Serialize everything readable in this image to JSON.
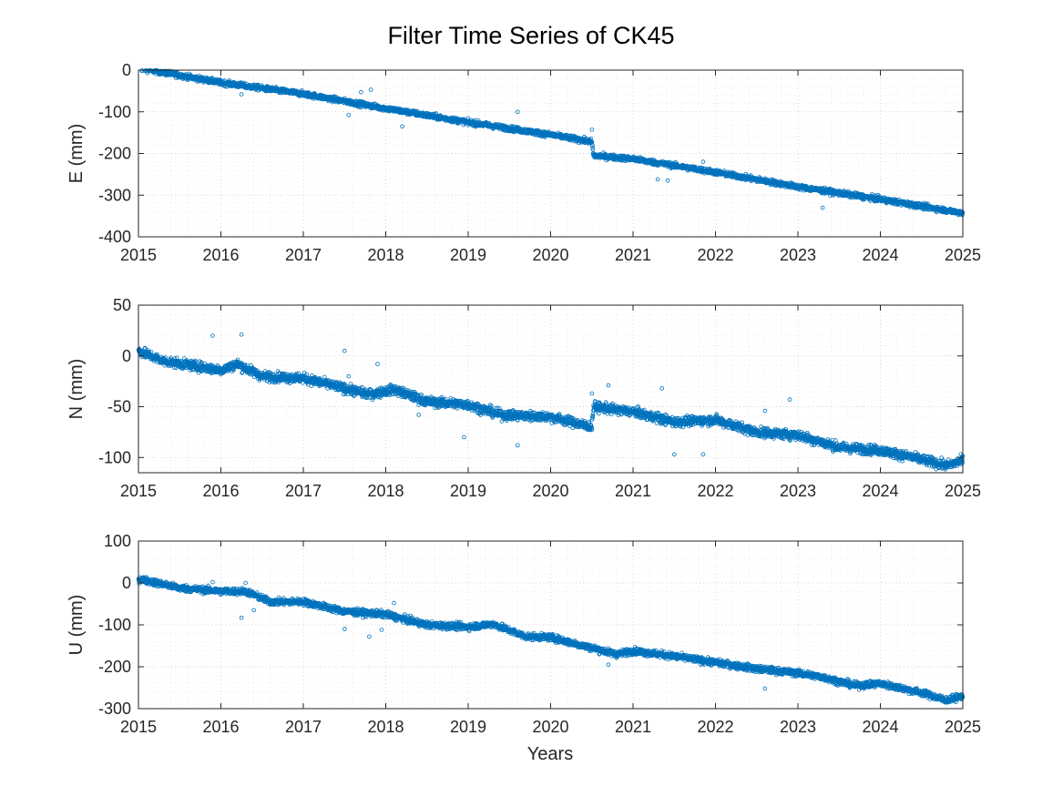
{
  "title": "Filter Time Series of CK45",
  "xlabel": "Years",
  "colors": {
    "marker": "#0072bd",
    "axes": "#262626",
    "grid": "#cfcfcf"
  },
  "chart_data": [
    {
      "type": "scatter",
      "name": "E",
      "ylabel": "E (mm)",
      "xlim": [
        2015,
        2025
      ],
      "ylim": [
        -400,
        0
      ],
      "xticks": [
        2015,
        2016,
        2017,
        2018,
        2019,
        2020,
        2021,
        2022,
        2023,
        2024,
        2025
      ],
      "yticks": [
        0,
        -100,
        -200,
        -300,
        -400
      ],
      "grid": "on (major and minor)",
      "marker": "open circle",
      "trend": [
        [
          2015.0,
          5
        ],
        [
          2016.0,
          -30
        ],
        [
          2017.0,
          -57
        ],
        [
          2018.0,
          -92
        ],
        [
          2019.0,
          -125
        ],
        [
          2020.0,
          -155
        ],
        [
          2020.5,
          -172
        ],
        [
          2020.52,
          -205
        ],
        [
          2021.0,
          -213
        ],
        [
          2022.0,
          -245
        ],
        [
          2023.0,
          -280
        ],
        [
          2024.0,
          -310
        ],
        [
          2025.0,
          -343
        ]
      ],
      "offsets": [
        {
          "x": 2020.51,
          "from": -172,
          "to": -205
        }
      ],
      "outliers": [
        [
          2016.25,
          -58
        ],
        [
          2017.55,
          -108
        ],
        [
          2017.7,
          -53
        ],
        [
          2017.82,
          -47
        ],
        [
          2018.2,
          -135
        ],
        [
          2019.0,
          -132
        ],
        [
          2019.6,
          -100
        ],
        [
          2020.5,
          -143
        ],
        [
          2021.3,
          -262
        ],
        [
          2021.42,
          -265
        ],
        [
          2021.85,
          -220
        ],
        [
          2023.3,
          -330
        ]
      ]
    },
    {
      "type": "scatter",
      "name": "N",
      "ylabel": "N (mm)",
      "xlim": [
        2015,
        2025
      ],
      "ylim": [
        -115,
        50
      ],
      "xticks": [
        2015,
        2016,
        2017,
        2018,
        2019,
        2020,
        2021,
        2022,
        2023,
        2024,
        2025
      ],
      "yticks": [
        50,
        0,
        -50,
        -100
      ],
      "grid": "on (major and minor)",
      "marker": "open circle",
      "trend": [
        [
          2015.0,
          5
        ],
        [
          2015.3,
          -5
        ],
        [
          2016.0,
          -14
        ],
        [
          2016.2,
          -8
        ],
        [
          2016.5,
          -20
        ],
        [
          2017.0,
          -22
        ],
        [
          2017.3,
          -28
        ],
        [
          2017.8,
          -38
        ],
        [
          2018.1,
          -33
        ],
        [
          2018.5,
          -45
        ],
        [
          2019.0,
          -48
        ],
        [
          2019.4,
          -58
        ],
        [
          2020.0,
          -60
        ],
        [
          2020.5,
          -70
        ],
        [
          2020.52,
          -50
        ],
        [
          2021.0,
          -55
        ],
        [
          2021.5,
          -65
        ],
        [
          2022.0,
          -63
        ],
        [
          2022.5,
          -75
        ],
        [
          2023.0,
          -78
        ],
        [
          2023.5,
          -90
        ],
        [
          2024.0,
          -93
        ],
        [
          2024.4,
          -100
        ],
        [
          2024.8,
          -108
        ],
        [
          2025.0,
          -103
        ]
      ],
      "offsets": [
        {
          "x": 2020.51,
          "from": -70,
          "to": -50
        }
      ],
      "outliers": [
        [
          2015.9,
          20
        ],
        [
          2016.25,
          21
        ],
        [
          2017.5,
          5
        ],
        [
          2017.55,
          -20
        ],
        [
          2017.9,
          -8
        ],
        [
          2018.4,
          -58
        ],
        [
          2018.95,
          -80
        ],
        [
          2019.6,
          -88
        ],
        [
          2020.5,
          -37
        ],
        [
          2020.7,
          -29
        ],
        [
          2021.35,
          -32
        ],
        [
          2021.5,
          -97
        ],
        [
          2021.85,
          -97
        ],
        [
          2022.6,
          -54
        ],
        [
          2022.9,
          -43
        ]
      ]
    },
    {
      "type": "scatter",
      "name": "U",
      "ylabel": "U (mm)",
      "xlim": [
        2015,
        2025
      ],
      "ylim": [
        -300,
        100
      ],
      "xticks": [
        2015,
        2016,
        2017,
        2018,
        2019,
        2020,
        2021,
        2022,
        2023,
        2024,
        2025
      ],
      "yticks": [
        100,
        0,
        -100,
        -200,
        -300
      ],
      "grid": "on (major and minor)",
      "marker": "open circle",
      "trend": [
        [
          2015.0,
          10
        ],
        [
          2015.5,
          -12
        ],
        [
          2016.0,
          -20
        ],
        [
          2016.3,
          -20
        ],
        [
          2016.6,
          -45
        ],
        [
          2017.0,
          -45
        ],
        [
          2017.5,
          -68
        ],
        [
          2018.0,
          -75
        ],
        [
          2018.5,
          -100
        ],
        [
          2019.0,
          -105
        ],
        [
          2019.3,
          -98
        ],
        [
          2019.7,
          -128
        ],
        [
          2020.0,
          -130
        ],
        [
          2020.5,
          -155
        ],
        [
          2020.8,
          -170
        ],
        [
          2021.0,
          -162
        ],
        [
          2021.5,
          -175
        ],
        [
          2022.0,
          -190
        ],
        [
          2022.5,
          -205
        ],
        [
          2023.0,
          -215
        ],
        [
          2023.3,
          -225
        ],
        [
          2023.7,
          -245
        ],
        [
          2024.0,
          -240
        ],
        [
          2024.5,
          -262
        ],
        [
          2024.8,
          -280
        ],
        [
          2025.0,
          -270
        ]
      ],
      "offsets": [],
      "outliers": [
        [
          2015.9,
          2
        ],
        [
          2016.25,
          -83
        ],
        [
          2016.3,
          0
        ],
        [
          2016.4,
          -65
        ],
        [
          2017.5,
          -110
        ],
        [
          2017.8,
          -128
        ],
        [
          2017.95,
          -112
        ],
        [
          2018.1,
          -48
        ],
        [
          2020.7,
          -195
        ],
        [
          2022.6,
          -252
        ],
        [
          2023.5,
          -232
        ]
      ]
    }
  ]
}
